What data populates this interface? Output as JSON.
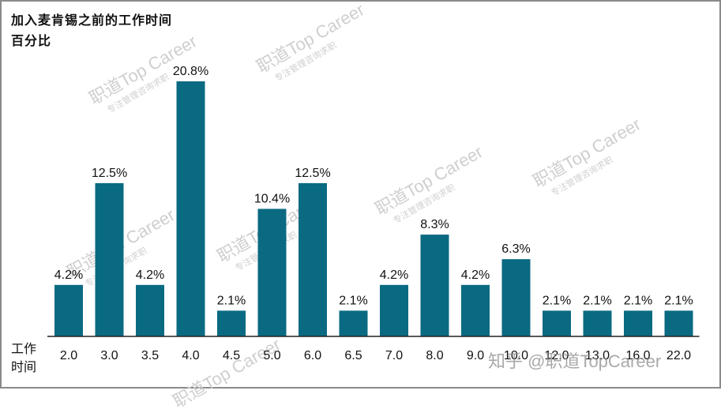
{
  "title": {
    "line1": "加入麦肯锡之前的工作时间",
    "line2": "百分比"
  },
  "xlabel": {
    "line1": "工作",
    "line2": "时间"
  },
  "watermark": {
    "brand": "职道Top Career",
    "tagline": "专注管理咨询求职",
    "small": "TopCareer"
  },
  "credit": "知乎 @职道TopCareer",
  "colors": {
    "bar": "#0a6a82",
    "axis": "#222222",
    "text": "#111111"
  },
  "chart_data": {
    "type": "bar",
    "categories": [
      "2.0",
      "3.0",
      "3.5",
      "4.0",
      "4.5",
      "5.0",
      "6.0",
      "6.5",
      "7.0",
      "8.0",
      "9.0",
      "10.0",
      "12.0",
      "13.0",
      "16.0",
      "22.0"
    ],
    "values": [
      4.2,
      12.5,
      4.2,
      20.8,
      2.1,
      10.4,
      12.5,
      2.1,
      4.2,
      8.3,
      4.2,
      6.3,
      2.1,
      2.1,
      2.1,
      2.1
    ],
    "data_labels": [
      "4.2%",
      "12.5%",
      "4.2%",
      "20.8%",
      "2.1%",
      "10.4%",
      "12.5%",
      "2.1%",
      "4.2%",
      "8.3%",
      "4.2%",
      "6.3%",
      "2.1%",
      "2.1%",
      "2.1%",
      "2.1%"
    ],
    "title": "加入麦肯锡之前的工作时间",
    "ylabel": "百分比",
    "xlabel": "工作时间",
    "ylim": [
      0,
      20.8
    ],
    "grid": false,
    "legend": "none"
  }
}
